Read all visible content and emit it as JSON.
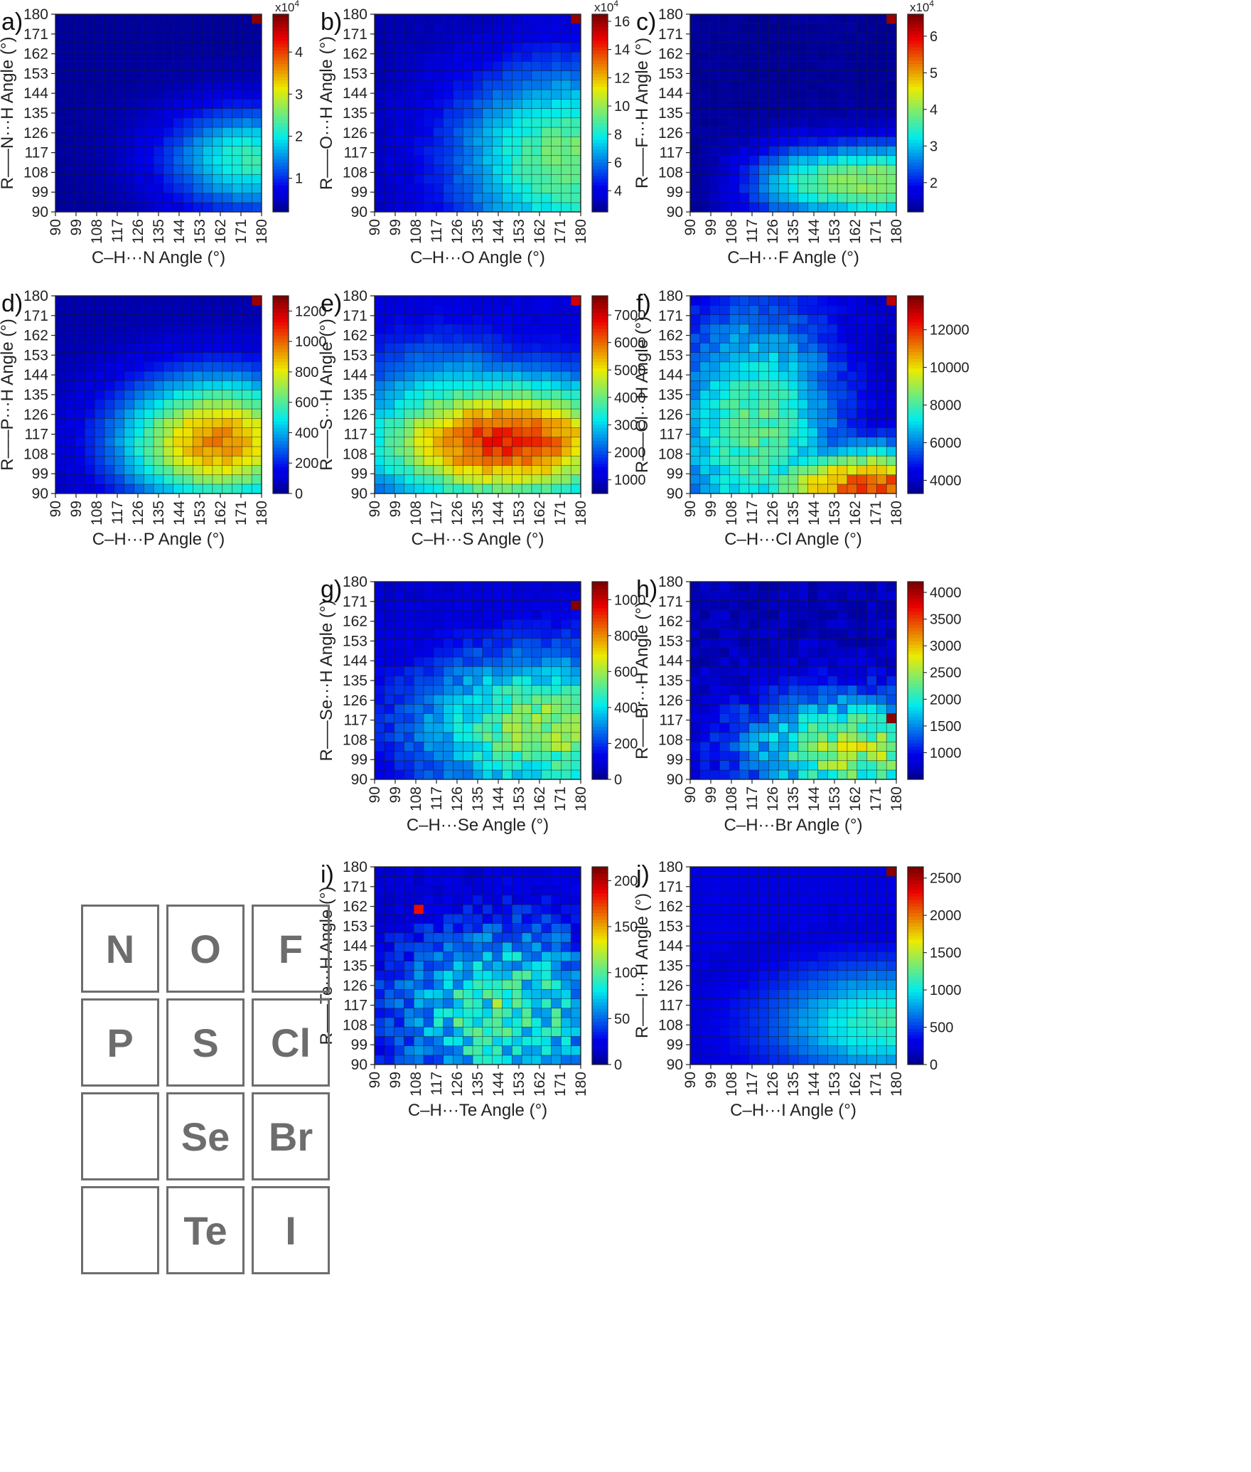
{
  "ticks": [
    "90",
    "99",
    "108",
    "117",
    "126",
    "135",
    "144",
    "153",
    "162",
    "171",
    "180"
  ],
  "multiplier_prefix": "x10",
  "multiplier_exp": "4",
  "periodic": [
    [
      "N",
      "O",
      "F"
    ],
    [
      "P",
      "S",
      "Cl"
    ],
    [
      "",
      "Se",
      "Br"
    ],
    [
      "",
      "Te",
      "I"
    ]
  ],
  "chart_data": [
    {
      "id": "N",
      "type": "heatmap",
      "panel": "a)",
      "xlabel": "C–H···N Angle (°)",
      "ylabel": "R–––N···H Angle (°)",
      "scale": "×10^4",
      "cbar_ticks": [
        1,
        2,
        3,
        4
      ],
      "vmin": 0.2,
      "vmax": 4.9,
      "base": [
        0.3,
        2.2
      ],
      "center": [
        180,
        115,
        40,
        25
      ],
      "peak": [
        180,
        180,
        4.8
      ],
      "pattern": "smooth",
      "x_bins": [
        90,
        180
      ],
      "y_bins": [
        90,
        180
      ]
    },
    {
      "id": "O",
      "type": "heatmap",
      "panel": "b)",
      "xlabel": "C–H···O Angle (°)",
      "ylabel": "R–––O···H Angle (°)",
      "scale": "×10^4",
      "cbar_ticks": [
        4,
        6,
        8,
        10,
        12,
        14,
        16
      ],
      "vmin": 2.5,
      "vmax": 16.5,
      "base": [
        3,
        9.5
      ],
      "center": [
        180,
        115,
        55,
        45
      ],
      "peak": [
        180,
        180,
        16
      ],
      "pattern": "smooth",
      "x_bins": [
        90,
        180
      ],
      "y_bins": [
        90,
        180
      ]
    },
    {
      "id": "F",
      "type": "heatmap",
      "panel": "c)",
      "xlabel": "C–H···F Angle (°)",
      "ylabel": "R–––F···H Angle (°)",
      "scale": "×10^4",
      "cbar_ticks": [
        2,
        3,
        4,
        5,
        6
      ],
      "vmin": 1.2,
      "vmax": 6.6,
      "base": [
        1.3,
        4.0
      ],
      "center": [
        180,
        104,
        70,
        18
      ],
      "peak": [
        180,
        180,
        6.4
      ],
      "pattern": "band",
      "x_bins": [
        90,
        180
      ],
      "y_bins": [
        90,
        180
      ]
    },
    {
      "id": "P",
      "type": "heatmap",
      "panel": "d)",
      "xlabel": "C–H···P Angle (°)",
      "ylabel": "R–––P···H Angle (°)",
      "scale": "",
      "cbar_ticks": [
        0,
        200,
        400,
        600,
        800,
        1000,
        1200
      ],
      "vmin": 0,
      "vmax": 1300,
      "base": [
        50,
        960
      ],
      "center": [
        165,
        115,
        45,
        30
      ],
      "peak": [
        180,
        180,
        1250
      ],
      "pattern": "smooth",
      "x_bins": [
        90,
        180
      ],
      "y_bins": [
        90,
        180
      ]
    },
    {
      "id": "S",
      "type": "heatmap",
      "panel": "e)",
      "xlabel": "C–H···S Angle (°)",
      "ylabel": "R–––S···H Angle (°)",
      "scale": "",
      "cbar_ticks": [
        1000,
        2000,
        3000,
        4000,
        5000,
        6000,
        7000
      ],
      "vmin": 500,
      "vmax": 7700,
      "base": [
        1200,
        6600
      ],
      "center": [
        150,
        115,
        60,
        28
      ],
      "peak": [
        180,
        180,
        7000
      ],
      "pattern": "broad",
      "x_bins": [
        90,
        180
      ],
      "y_bins": [
        90,
        180
      ]
    },
    {
      "id": "Cl",
      "type": "heatmap",
      "panel": "f)",
      "xlabel": "C–H···Cl Angle (°)",
      "ylabel": "R–––Cl···H Angle (°)",
      "scale": "",
      "cbar_ticks": [
        4000,
        6000,
        8000,
        10000,
        12000
      ],
      "vmin": 3300,
      "vmax": 13800,
      "base": [
        3800,
        11800
      ],
      "center": [
        175,
        92,
        55,
        20
      ],
      "peak": [
        180,
        180,
        13000
      ],
      "pattern": "corner",
      "x_bins": [
        90,
        180
      ],
      "y_bins": [
        90,
        180
      ]
    },
    {
      "id": "Se",
      "type": "heatmap",
      "panel": "g)",
      "xlabel": "C–H···Se Angle (°)",
      "ylabel": "R–––Se···H Angle (°)",
      "scale": "",
      "cbar_ticks": [
        0,
        200,
        400,
        600,
        800,
        1000
      ],
      "vmin": 0,
      "vmax": 1100,
      "base": [
        80,
        580
      ],
      "center": [
        170,
        115,
        60,
        35
      ],
      "peak": [
        180,
        171,
        1080
      ],
      "pattern": "noisy",
      "x_bins": [
        90,
        180
      ],
      "y_bins": [
        90,
        180
      ]
    },
    {
      "id": "Br",
      "type": "heatmap",
      "panel": "h)",
      "xlabel": "C–H···Br Angle (°)",
      "ylabel": "R–––Br···H Angle (°)",
      "scale": "",
      "cbar_ticks": [
        1000,
        1500,
        2000,
        2500,
        3000,
        3500,
        4000
      ],
      "vmin": 500,
      "vmax": 4200,
      "base": [
        700,
        2500
      ],
      "center": [
        165,
        105,
        50,
        25
      ],
      "peak": [
        180,
        117,
        4100
      ],
      "pattern": "noisy",
      "x_bins": [
        90,
        180
      ],
      "y_bins": [
        90,
        180
      ]
    },
    {
      "id": "Te",
      "type": "heatmap",
      "panel": "i)",
      "xlabel": "C–H···Te Angle (°)",
      "ylabel": "R–––Te···H Angle (°)",
      "scale": "",
      "cbar_ticks": [
        0,
        50,
        100,
        150,
        200
      ],
      "vmin": 0,
      "vmax": 215,
      "base": [
        15,
        95
      ],
      "center": [
        150,
        115,
        50,
        40
      ],
      "peak": [
        108,
        162,
        185
      ],
      "pattern": "veryNoisy",
      "x_bins": [
        90,
        180
      ],
      "y_bins": [
        90,
        180
      ]
    },
    {
      "id": "I",
      "type": "heatmap",
      "panel": "j)",
      "xlabel": "C–H···I Angle (°)",
      "ylabel": "R–––I···H Angle (°)",
      "scale": "",
      "cbar_ticks": [
        0,
        500,
        1000,
        1500,
        2000,
        2500
      ],
      "vmin": 0,
      "vmax": 2650,
      "base": [
        250,
        1150
      ],
      "center": [
        180,
        110,
        50,
        25
      ],
      "peak": [
        180,
        180,
        2600
      ],
      "pattern": "smooth",
      "x_bins": [
        90,
        180
      ],
      "y_bins": [
        90,
        180
      ]
    }
  ]
}
